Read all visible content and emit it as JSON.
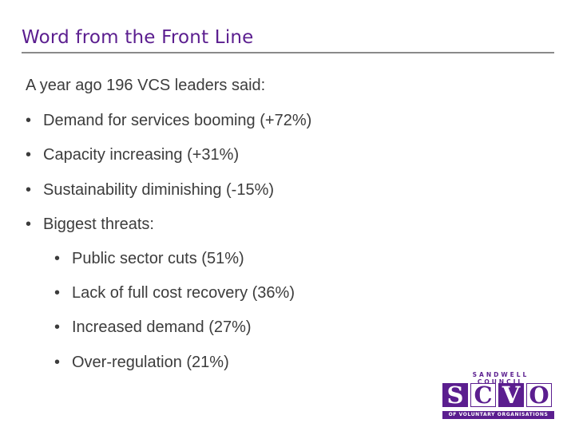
{
  "slide": {
    "title": "Word from the Front Line",
    "intro": "A year ago 196 VCS leaders said:",
    "bullets": [
      "Demand for services booming (+72%)",
      "Capacity increasing (+31%)",
      "Sustainability diminishing (-15%)",
      "Biggest threats:"
    ],
    "sub_bullets": [
      "Public sector cuts (51%)",
      "Lack of full cost recovery (36%)",
      "Increased demand (27%)",
      "Over-regulation (21%)"
    ],
    "bullet_glyph": "•"
  },
  "logo": {
    "top_text": "SANDWELL COUNCIL",
    "letters": [
      "S",
      "C",
      "V",
      "O"
    ],
    "bottom_text": "OF VOLUNTARY ORGANISATIONS",
    "color": "#5b1e8f"
  }
}
